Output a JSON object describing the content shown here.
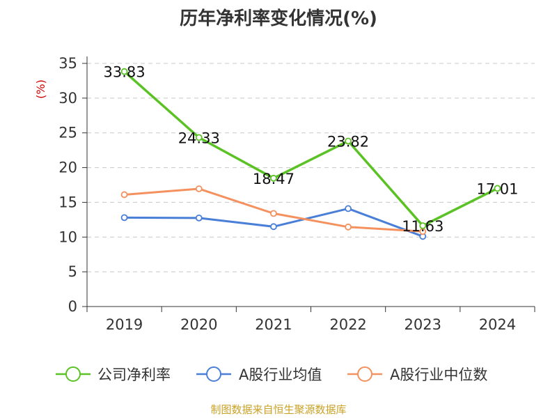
{
  "title": "历年净利率变化情况(%)",
  "source": "制图数据来自恒生聚源数据库",
  "chart_data": {
    "type": "line",
    "title": "历年净利率变化情况(%)",
    "ylabel": "(%)",
    "xlabel": "",
    "categories": [
      "2019",
      "2020",
      "2021",
      "2022",
      "2023",
      "2024"
    ],
    "ylim": [
      0,
      35
    ],
    "yticks": [
      0,
      5,
      10,
      15,
      20,
      25,
      30,
      35
    ],
    "grid": "horizontal-dashed",
    "legend_position": "bottom",
    "series": [
      {
        "name": "公司净利率",
        "color": "#5bc224",
        "values": [
          33.83,
          24.33,
          18.47,
          23.82,
          11.63,
          17.01
        ],
        "labels": [
          "33.83",
          "24.33",
          "18.47",
          "23.82",
          "11.63",
          "17.01"
        ]
      },
      {
        "name": "A股行业均值",
        "color": "#4a7fd8",
        "values": [
          12.8,
          12.75,
          11.5,
          14.1,
          10.1,
          null
        ],
        "labels": []
      },
      {
        "name": "A股行业中位数",
        "color": "#f4915e",
        "values": [
          16.1,
          16.95,
          13.4,
          11.45,
          10.8,
          null
        ],
        "labels": []
      }
    ]
  }
}
